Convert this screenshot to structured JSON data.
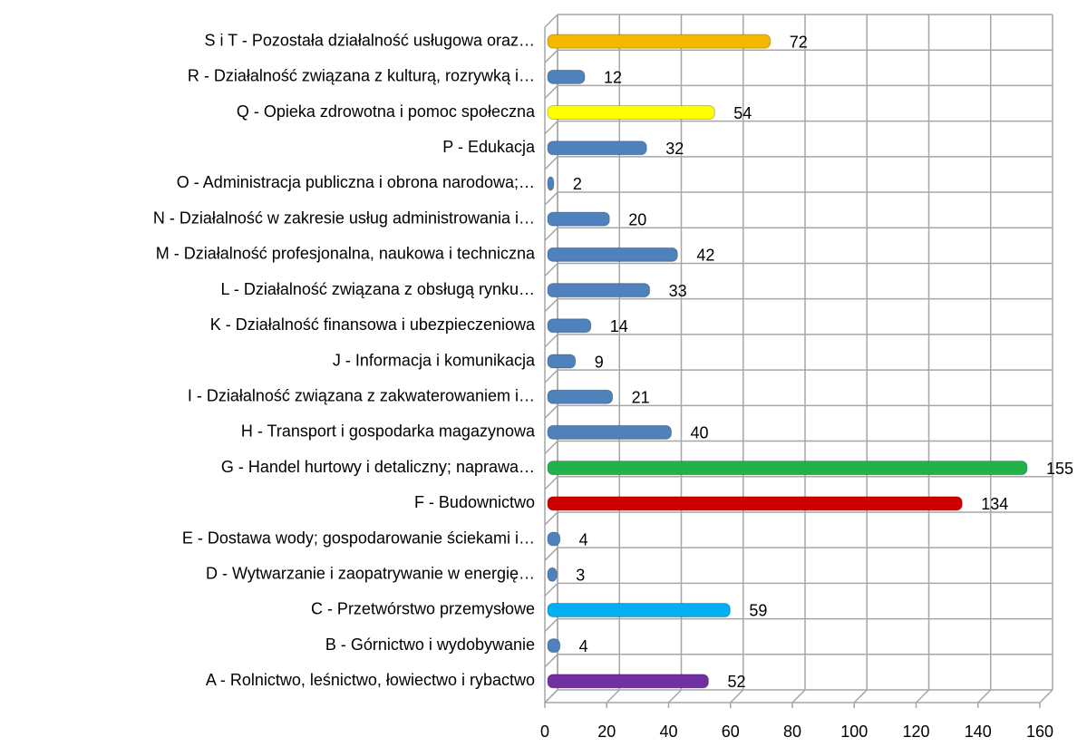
{
  "chart_data": {
    "type": "bar",
    "orientation": "horizontal",
    "categories": [
      "S i T - Pozostała działalność usługowa oraz…",
      "R - Działalność związana z kulturą, rozrywką i…",
      "Q - Opieka zdrowotna i pomoc społeczna",
      "P - Edukacja",
      "O - Administracja publiczna i obrona narodowa;…",
      "N - Działalność w zakresie usług administrowania i…",
      "M - Działalność profesjonalna, naukowa i techniczna",
      "L - Działalność związana z obsługą rynku…",
      "K - Działalność finansowa i ubezpieczeniowa",
      "J - Informacja i komunikacja",
      "I - Działalność związana z zakwaterowaniem i…",
      "H - Transport i gospodarka magazynowa",
      "G - Handel hurtowy i detaliczny; naprawa…",
      "F - Budownictwo",
      "E - Dostawa wody; gospodarowanie ściekami i…",
      "D - Wytwarzanie i zaopatrywanie w energię…",
      "C - Przetwórstwo przemysłowe",
      "B - Górnictwo i wydobywanie",
      "A - Rolnictwo, leśnictwo, łowiectwo i rybactwo"
    ],
    "values": [
      72,
      12,
      54,
      32,
      2,
      20,
      42,
      33,
      14,
      9,
      21,
      40,
      155,
      134,
      4,
      3,
      59,
      4,
      52
    ],
    "colors": [
      "#f5b800",
      "#4f81bd",
      "#ffff00",
      "#4f81bd",
      "#4f81bd",
      "#4f81bd",
      "#4f81bd",
      "#4f81bd",
      "#4f81bd",
      "#4f81bd",
      "#4f81bd",
      "#4f81bd",
      "#1fb34a",
      "#cc0000",
      "#4f81bd",
      "#4f81bd",
      "#00b0f0",
      "#4f81bd",
      "#7030a0"
    ],
    "xlim": [
      0,
      160
    ],
    "xticks": [
      0,
      20,
      40,
      60,
      80,
      100,
      120,
      140,
      160
    ],
    "grid": true
  }
}
